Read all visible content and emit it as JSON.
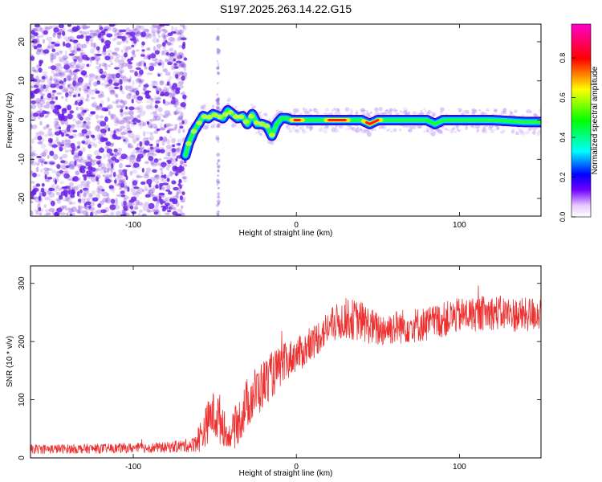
{
  "title": "S197.2025.263.14.22.G15",
  "colorbar": {
    "label": "Normalized spectral amplitude",
    "ticks": [
      "0.0",
      "0.2",
      "0.4",
      "0.6",
      "0.8"
    ],
    "tick_values": [
      0.0,
      0.2,
      0.4,
      0.6,
      0.8
    ],
    "range": [
      0,
      0.97
    ]
  },
  "colors": {
    "snr_line": "#ee3030",
    "noise": "#8a4fe0",
    "axis": "#000000"
  },
  "chart_data": [
    {
      "type": "heatmap",
      "name": "spectrogram",
      "xlabel": "Height of straight line (km)",
      "ylabel": "Frequency (Hz)",
      "xlim": [
        -163,
        150
      ],
      "ylim": [
        -24.5,
        24.5
      ],
      "xticks": [
        "-100",
        "0",
        "100"
      ],
      "xtick_values": [
        -100,
        0,
        100
      ],
      "yticks": [
        "-20",
        "-10",
        "0",
        "10",
        "20"
      ],
      "ytick_values": [
        -20,
        -10,
        0,
        10,
        20
      ],
      "noise_region_x": [
        -163,
        -68
      ],
      "ridge": {
        "x": [
          -68,
          -66,
          -63,
          -60,
          -57,
          -54,
          -51,
          -48,
          -45,
          -42,
          -39,
          -36,
          -33,
          -30,
          -27,
          -24,
          -21,
          -18,
          -15,
          -12,
          -9,
          -6,
          -3,
          0,
          10,
          20,
          30,
          40,
          45,
          50,
          60,
          80,
          85,
          90,
          100,
          120,
          140,
          150
        ],
        "freq": [
          -9,
          -6,
          -3,
          -1,
          1,
          0.5,
          1.5,
          1,
          0.5,
          2.5,
          1.5,
          0.5,
          1,
          -1,
          1.5,
          -1,
          -1,
          -1.5,
          -4,
          -1,
          0.5,
          0.5,
          0,
          0,
          0,
          0,
          0,
          0,
          -1,
          0,
          0,
          0,
          -1,
          0,
          0,
          0,
          -0.5,
          -0.5
        ],
        "peak_amplitude_regions_x": [
          [
            -1,
            2
          ],
          [
            20,
            30
          ],
          [
            43,
            50
          ]
        ]
      }
    },
    {
      "type": "line",
      "name": "snr",
      "xlabel": "Height of straight line (km)",
      "ylabel": "SNR (10 * v/v)",
      "xlim": [
        -163,
        150
      ],
      "ylim": [
        0,
        330
      ],
      "xticks": [
        "-100",
        "0",
        "100"
      ],
      "xtick_values": [
        -100,
        0,
        100
      ],
      "yticks": [
        "0",
        "100",
        "200",
        "300"
      ],
      "ytick_values": [
        0,
        100,
        200,
        300
      ],
      "envelope": {
        "x": [
          -163,
          -120,
          -80,
          -64,
          -58,
          -52,
          -46,
          -42,
          -38,
          -34,
          -30,
          -26,
          -22,
          -18,
          -14,
          -10,
          -6,
          -2,
          2,
          8,
          14,
          20,
          30,
          40,
          50,
          60,
          80,
          100,
          120,
          140,
          150
        ],
        "mean": [
          15,
          16,
          18,
          22,
          40,
          75,
          65,
          35,
          50,
          70,
          95,
          110,
          120,
          135,
          145,
          155,
          165,
          175,
          180,
          190,
          210,
          225,
          240,
          235,
          220,
          225,
          230,
          245,
          250,
          245,
          250
        ],
        "spread": [
          8,
          8,
          9,
          12,
          30,
          40,
          45,
          15,
          35,
          40,
          45,
          45,
          45,
          40,
          40,
          35,
          35,
          30,
          30,
          30,
          30,
          30,
          35,
          35,
          30,
          30,
          30,
          30,
          30,
          30,
          30
        ]
      }
    }
  ]
}
